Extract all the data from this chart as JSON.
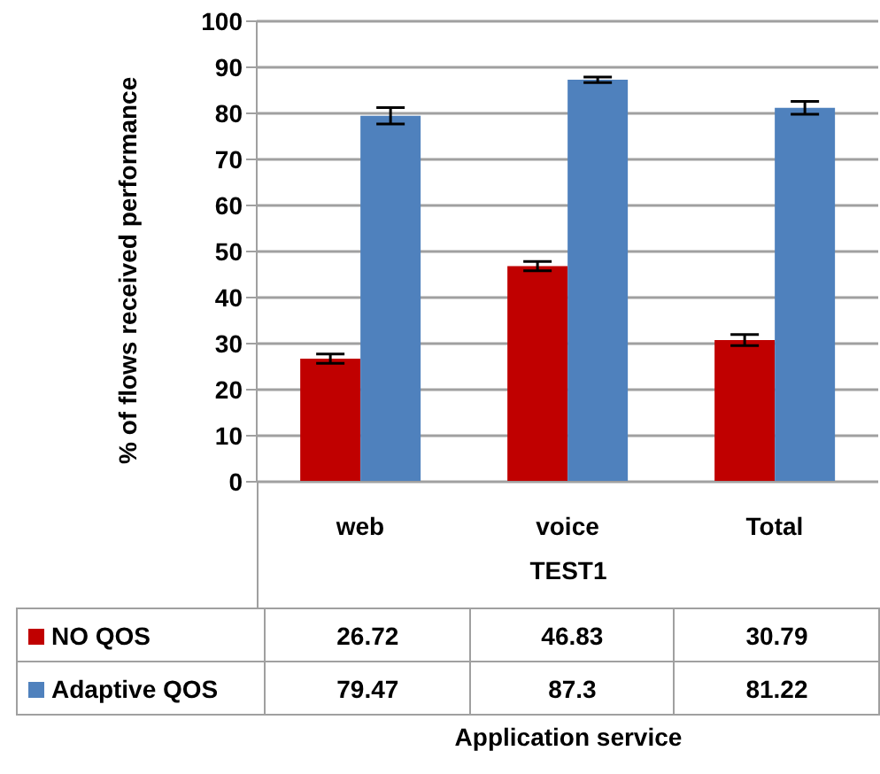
{
  "chart_data": {
    "type": "bar",
    "ylabel": "% of flows received performance",
    "categories": [
      "web",
      "voice",
      "Total"
    ],
    "annotations": [
      "TEST1",
      "Application service"
    ],
    "series": [
      {
        "name": "NO QOS",
        "color": "#c00000",
        "values": [
          26.72,
          46.83,
          30.79
        ],
        "errors": [
          1,
          1,
          1.2
        ]
      },
      {
        "name": "Adaptive QOS",
        "color": "#4f81bd",
        "values": [
          79.47,
          87.3,
          81.22
        ],
        "errors": [
          1.8,
          0.6,
          1.4
        ]
      }
    ],
    "ylim": [
      0,
      100
    ],
    "yticks": [
      0,
      10,
      20,
      30,
      40,
      50,
      60,
      70,
      80,
      90,
      100
    ],
    "grid": "y",
    "legend": "bottom",
    "data_labels": true
  }
}
